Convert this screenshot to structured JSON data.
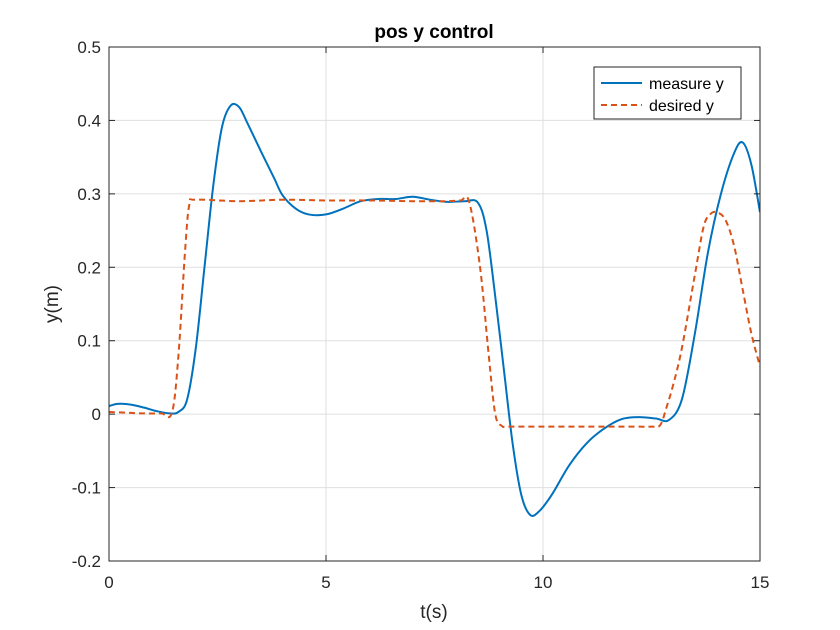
{
  "chart_data": {
    "type": "line",
    "title": "pos y control",
    "xlabel": "t(s)",
    "ylabel": "y(m)",
    "xlim": [
      0,
      15
    ],
    "ylim": [
      -0.2,
      0.5
    ],
    "xticks": [
      0,
      5,
      10,
      15
    ],
    "xtick_labels": [
      "0",
      "5",
      "10",
      "15"
    ],
    "yticks": [
      -0.2,
      -0.1,
      0,
      0.1,
      0.2,
      0.3,
      0.4,
      0.5
    ],
    "ytick_labels": [
      "-0.2",
      "-0.1",
      "0",
      "0.1",
      "0.2",
      "0.3",
      "0.4",
      "0.5"
    ],
    "grid": true,
    "legend_position": "top-right",
    "series": [
      {
        "name": "measure y",
        "color": "#0072BD",
        "style": "solid",
        "x": [
          0,
          0.2,
          0.5,
          0.8,
          1.1,
          1.4,
          1.6,
          1.8,
          2.0,
          2.2,
          2.4,
          2.6,
          2.8,
          3.0,
          3.2,
          3.5,
          3.8,
          4.0,
          4.3,
          4.6,
          5.0,
          5.4,
          5.8,
          6.2,
          6.6,
          7.0,
          7.4,
          7.8,
          8.2,
          8.5,
          8.7,
          8.9,
          9.1,
          9.3,
          9.5,
          9.7,
          9.9,
          10.2,
          10.6,
          11.0,
          11.4,
          11.8,
          12.2,
          12.6,
          12.9,
          13.2,
          13.5,
          13.8,
          14.1,
          14.4,
          14.6,
          14.8,
          15.0
        ],
        "y": [
          0.011,
          0.014,
          0.013,
          0.009,
          0.004,
          0.001,
          0.003,
          0.02,
          0.09,
          0.2,
          0.31,
          0.39,
          0.42,
          0.418,
          0.395,
          0.358,
          0.322,
          0.298,
          0.28,
          0.272,
          0.272,
          0.28,
          0.29,
          0.293,
          0.293,
          0.296,
          0.292,
          0.289,
          0.29,
          0.288,
          0.25,
          0.16,
          0.06,
          -0.04,
          -0.11,
          -0.137,
          -0.133,
          -0.11,
          -0.07,
          -0.04,
          -0.02,
          -0.007,
          -0.004,
          -0.006,
          -0.008,
          0.02,
          0.11,
          0.22,
          0.3,
          0.355,
          0.37,
          0.34,
          0.275
        ]
      },
      {
        "name": "desired y",
        "color": "#D95319",
        "style": "dashed",
        "x": [
          0,
          0.4,
          0.8,
          1.2,
          1.45,
          1.6,
          1.75,
          1.85,
          2.0,
          3.0,
          4.0,
          5.0,
          6.0,
          7.0,
          7.8,
          8.1,
          8.3,
          8.55,
          8.75,
          8.9,
          9.05,
          9.2,
          10.0,
          11.0,
          12.0,
          12.5,
          12.7,
          12.85,
          13.0,
          13.2,
          13.5,
          13.7,
          13.85,
          14.0,
          14.2,
          14.4,
          14.6,
          14.8,
          15.0
        ],
        "y": [
          0.003,
          0.002,
          0.001,
          0.001,
          0.002,
          0.08,
          0.22,
          0.285,
          0.292,
          0.29,
          0.292,
          0.291,
          0.291,
          0.29,
          0.29,
          0.291,
          0.289,
          0.2,
          0.08,
          0.0,
          -0.016,
          -0.017,
          -0.017,
          -0.017,
          -0.017,
          -0.017,
          -0.015,
          0.01,
          0.04,
          0.09,
          0.19,
          0.255,
          0.272,
          0.275,
          0.265,
          0.23,
          0.17,
          0.11,
          0.065
        ]
      }
    ]
  }
}
